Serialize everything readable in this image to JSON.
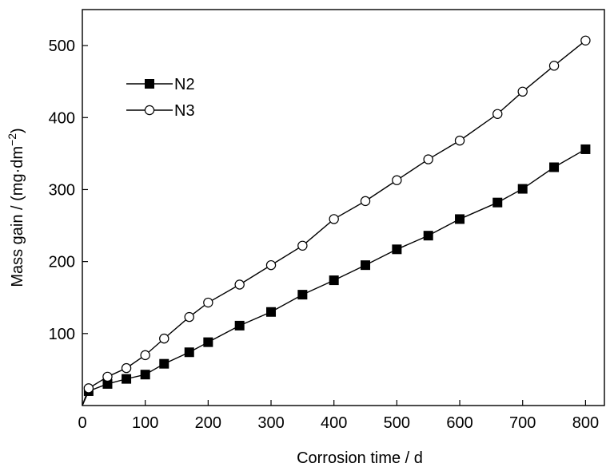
{
  "chart_data": {
    "type": "line",
    "title": "",
    "xlabel": "Corrosion time / d",
    "ylabel_prefix": "Mass gain / (mg·dm",
    "ylabel_superscript": "−2",
    "ylabel_suffix": ")",
    "xlim": [
      0,
      830
    ],
    "ylim": [
      0,
      550
    ],
    "x_ticks": [
      0,
      100,
      200,
      300,
      400,
      500,
      600,
      700,
      800
    ],
    "x_tick_labels": [
      "0",
      "100",
      "200",
      "300",
      "400",
      "500",
      "600",
      "700",
      "800"
    ],
    "y_ticks": [
      100,
      200,
      300,
      400,
      500
    ],
    "y_tick_labels": [
      "100",
      "200",
      "300",
      "400",
      "500"
    ],
    "grid": false,
    "legend_position": "upper-left",
    "series": [
      {
        "name": "N2",
        "marker": "filled-square",
        "color": "#000000",
        "x": [
          0,
          10,
          40,
          70,
          100,
          130,
          170,
          200,
          250,
          300,
          350,
          400,
          450,
          500,
          550,
          600,
          660,
          700,
          750,
          800
        ],
        "y": [
          0,
          20,
          30,
          37,
          43,
          58,
          74,
          88,
          111,
          130,
          154,
          174,
          195,
          217,
          236,
          259,
          282,
          301,
          331,
          356
        ]
      },
      {
        "name": "N3",
        "marker": "open-circle",
        "color": "#000000",
        "x": [
          0,
          10,
          40,
          70,
          100,
          130,
          170,
          200,
          250,
          300,
          350,
          400,
          450,
          500,
          550,
          600,
          660,
          700,
          750,
          800
        ],
        "y": [
          0,
          24,
          40,
          52,
          70,
          93,
          123,
          143,
          168,
          195,
          222,
          259,
          284,
          313,
          342,
          368,
          405,
          436,
          472,
          507
        ]
      }
    ]
  }
}
